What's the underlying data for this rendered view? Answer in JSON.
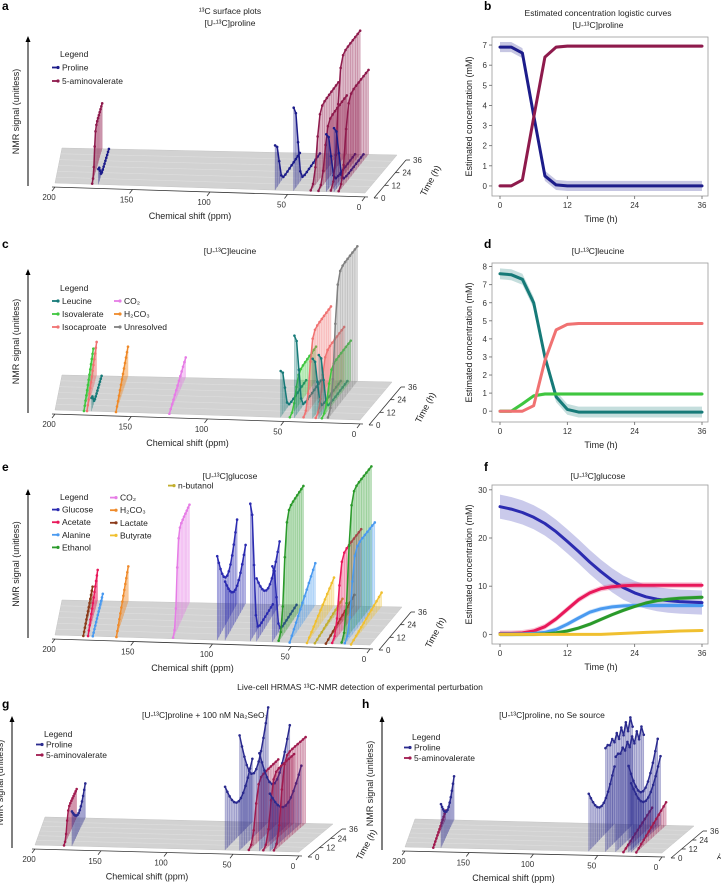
{
  "caption": "Live-cell HRMAS ¹³C-NMR detection of experimental perturbation",
  "chart_data": [
    {
      "panel": "a",
      "type": "surface3d",
      "title_lines": [
        "¹³C surface plots",
        "[U-¹³C]proline"
      ],
      "xlabel": "Chemical shift (ppm)",
      "tlabel": "Time (h)",
      "zlabel": "NMR signal (unitless)",
      "xticks": [
        200,
        150,
        100,
        50,
        0
      ],
      "tticks": [
        0,
        12,
        24,
        36
      ],
      "legend_title": "Legend",
      "series": [
        {
          "name": "Proline",
          "color": "#1c1c8a"
        },
        {
          "name": "5-aminovalerate",
          "color": "#8e1a4c"
        }
      ],
      "peaks": [
        {
          "series": 1,
          "ppm": 176,
          "trend": "increasing",
          "relative_height": 0.35
        },
        {
          "series": 0,
          "ppm": 172,
          "trend": "decreasing",
          "relative_height": 0.12
        },
        {
          "series": 0,
          "ppm": 58,
          "trend": "decreasing",
          "relative_height": 0.35
        },
        {
          "series": 0,
          "ppm": 46,
          "trend": "decreasing",
          "relative_height": 0.65
        },
        {
          "series": 1,
          "ppm": 35,
          "trend": "increasing",
          "relative_height": 0.55
        },
        {
          "series": 1,
          "ppm": 30,
          "trend": "increasing",
          "relative_height": 0.45
        },
        {
          "series": 0,
          "ppm": 25,
          "trend": "decreasing",
          "relative_height": 0.45
        },
        {
          "series": 1,
          "ppm": 22,
          "trend": "increasing",
          "relative_height": 0.95
        },
        {
          "series": 0,
          "ppm": 20,
          "trend": "decreasing",
          "relative_height": 0.5
        },
        {
          "series": 1,
          "ppm": 17,
          "trend": "increasing",
          "relative_height": 0.65
        }
      ]
    },
    {
      "panel": "b",
      "type": "line",
      "title_lines": [
        "Estimated concentration logistic curves",
        "[U-¹³C]proline"
      ],
      "xlabel": "Time (h)",
      "ylabel": "Estimated concentration (mM)",
      "xticks": [
        0,
        12,
        24,
        36
      ],
      "yticks": [
        0,
        1,
        2,
        3,
        4,
        5,
        6,
        7
      ],
      "xlim": [
        0,
        36
      ],
      "ylim": [
        -0.5,
        7.4
      ],
      "x": [
        0,
        2,
        4,
        6,
        8,
        10,
        12,
        14,
        16,
        18,
        20,
        22,
        24,
        26,
        28,
        30,
        32,
        34,
        36
      ],
      "series": [
        {
          "name": "Proline",
          "color": "#1c1c8a",
          "ci_halfwidth": 0.25,
          "values": [
            6.9,
            6.9,
            6.6,
            3.5,
            0.5,
            0.05,
            0,
            0,
            0,
            0,
            0,
            0,
            0,
            0,
            0,
            0,
            0,
            0,
            0
          ]
        },
        {
          "name": "5-aminovalerate",
          "color": "#8e1a4c",
          "ci_halfwidth": 0.08,
          "values": [
            0,
            0,
            0.3,
            3.4,
            6.4,
            6.9,
            6.95,
            6.95,
            6.95,
            6.95,
            6.95,
            6.95,
            6.95,
            6.95,
            6.95,
            6.95,
            6.95,
            6.95,
            6.95
          ]
        }
      ]
    },
    {
      "panel": "c",
      "type": "surface3d",
      "title_lines": [
        "[U-¹³C]leucine"
      ],
      "xlabel": "Chemical shift (ppm)",
      "tlabel": "Time (h)",
      "zlabel": "NMR signal (unitless)",
      "xticks": [
        200,
        150,
        100,
        50,
        0
      ],
      "tticks": [
        0,
        12,
        24,
        36
      ],
      "legend_title": "Legend",
      "series": [
        {
          "name": "Leucine",
          "color": "#167a78"
        },
        {
          "name": "Isovalerate",
          "color": "#3fc63f"
        },
        {
          "name": "Isocaproate",
          "color": "#f07272"
        },
        {
          "name": "CO₂",
          "color": "#e67de6"
        },
        {
          "name": "H₂CO₃",
          "color": "#ef8a2a"
        },
        {
          "name": "Unresolved",
          "color": "#808080"
        }
      ],
      "peaks": [
        {
          "series": 1,
          "ppm": 181,
          "trend": "gradual",
          "relative_height": 0.2
        },
        {
          "series": 2,
          "ppm": 179,
          "trend": "gradual",
          "relative_height": 0.25
        },
        {
          "series": 0,
          "ppm": 176,
          "trend": "decreasing",
          "relative_height": 0.1
        },
        {
          "series": 4,
          "ppm": 160,
          "trend": "gradual",
          "relative_height": 0.22
        },
        {
          "series": 3,
          "ppm": 125,
          "trend": "gradual",
          "relative_height": 0.15
        },
        {
          "series": 0,
          "ppm": 52,
          "trend": "decreasing",
          "relative_height": 0.35
        },
        {
          "series": 1,
          "ppm": 46,
          "trend": "increasing",
          "relative_height": 0.25
        },
        {
          "series": 0,
          "ppm": 43,
          "trend": "decreasing",
          "relative_height": 0.62
        },
        {
          "series": 2,
          "ppm": 37,
          "trend": "increasing",
          "relative_height": 0.55
        },
        {
          "series": 0,
          "ppm": 31,
          "trend": "decreasing",
          "relative_height": 0.45
        },
        {
          "series": 2,
          "ppm": 29,
          "trend": "increasing",
          "relative_height": 0.4
        },
        {
          "series": 0,
          "ppm": 27,
          "trend": "decreasing",
          "relative_height": 0.48
        },
        {
          "series": 1,
          "ppm": 25,
          "trend": "increasing",
          "relative_height": 0.3
        },
        {
          "series": 5,
          "ppm": 21,
          "trend": "increasing",
          "relative_height": 1.0
        }
      ]
    },
    {
      "panel": "d",
      "type": "line",
      "title_lines": [
        "[U-¹³C]leucine"
      ],
      "xlabel": "Time (h)",
      "ylabel": "Estimated concentration (mM)",
      "xticks": [
        0,
        12,
        24,
        36
      ],
      "yticks": [
        0,
        1,
        2,
        3,
        4,
        5,
        6,
        7,
        8
      ],
      "xlim": [
        0,
        36
      ],
      "ylim": [
        -0.6,
        8.2
      ],
      "x": [
        0,
        2,
        4,
        6,
        8,
        10,
        12,
        14,
        16,
        18,
        20,
        22,
        24,
        26,
        28,
        30,
        32,
        34,
        36
      ],
      "series": [
        {
          "name": "Leucine",
          "color": "#167a78",
          "ci_halfwidth": 0.3,
          "values": [
            7.6,
            7.55,
            7.3,
            6.0,
            3.0,
            0.8,
            0.1,
            -0.05,
            -0.05,
            -0.05,
            -0.05,
            -0.05,
            -0.05,
            -0.05,
            -0.05,
            -0.05,
            -0.05,
            -0.05,
            -0.05
          ]
        },
        {
          "name": "Isovalerate",
          "color": "#3fc63f",
          "ci_halfwidth": 0.1,
          "values": [
            0,
            0,
            0.4,
            0.85,
            0.95,
            0.95,
            0.95,
            0.95,
            0.95,
            0.95,
            0.95,
            0.95,
            0.95,
            0.95,
            0.95,
            0.95,
            0.95,
            0.95,
            0.95
          ]
        },
        {
          "name": "Isocaproate",
          "color": "#f07272",
          "ci_halfwidth": 0.08,
          "values": [
            0,
            0,
            0,
            0.3,
            2.8,
            4.5,
            4.8,
            4.85,
            4.85,
            4.85,
            4.85,
            4.85,
            4.85,
            4.85,
            4.85,
            4.85,
            4.85,
            4.85,
            4.85
          ]
        }
      ]
    },
    {
      "panel": "e",
      "type": "surface3d",
      "title_lines": [
        "[U-¹³C]glucose"
      ],
      "xlabel": "Chemical shift (ppm)",
      "tlabel": "Time (h)",
      "zlabel": "NMR signal (unitless)",
      "xticks": [
        200,
        150,
        100,
        50,
        0
      ],
      "tticks": [
        0,
        12,
        24,
        36
      ],
      "legend_title": "Legend",
      "series": [
        {
          "name": "Glucose",
          "color": "#2b2bb0"
        },
        {
          "name": "Acetate",
          "color": "#e8185a"
        },
        {
          "name": "Alanine",
          "color": "#4a9af0"
        },
        {
          "name": "Ethanol",
          "color": "#2a9a2a"
        },
        {
          "name": "CO₂",
          "color": "#e67de6"
        },
        {
          "name": "H₂CO₃",
          "color": "#ef8a2a"
        },
        {
          "name": "Lactate",
          "color": "#8b3a1a"
        },
        {
          "name": "Butyrate",
          "color": "#f0c030"
        },
        {
          "name": "n-butanol",
          "color": "#c2ae2e"
        }
      ],
      "peaks": [
        {
          "series": 6,
          "ppm": 182,
          "trend": "gradual",
          "relative_height": 0.1
        },
        {
          "series": 1,
          "ppm": 179,
          "trend": "gradual",
          "relative_height": 0.22
        },
        {
          "series": 2,
          "ppm": 176,
          "trend": "gradual",
          "relative_height": 0.05
        },
        {
          "series": 5,
          "ppm": 161,
          "trend": "gradual",
          "relative_height": 0.25
        },
        {
          "series": 4,
          "ppm": 125,
          "trend": "increasing",
          "relative_height": 0.7
        },
        {
          "series": 0,
          "ppm": 97,
          "trend": "dip",
          "relative_height": 0.6
        },
        {
          "series": 0,
          "ppm": 92,
          "trend": "dip",
          "relative_height": 0.42
        },
        {
          "series": 0,
          "ppm": 76,
          "trend": "decreasing",
          "relative_height": 1.0
        },
        {
          "series": 0,
          "ppm": 72,
          "trend": "dip",
          "relative_height": 0.45
        },
        {
          "series": 0,
          "ppm": 62,
          "trend": "decreasing",
          "relative_height": 0.55
        },
        {
          "series": 3,
          "ppm": 58,
          "trend": "increasing",
          "relative_height": 0.85
        },
        {
          "series": 2,
          "ppm": 51,
          "trend": "gradual",
          "relative_height": 0.3
        },
        {
          "series": 7,
          "ppm": 40,
          "trend": "gradual",
          "relative_height": 0.2
        },
        {
          "series": 8,
          "ppm": 35,
          "trend": "gradual",
          "relative_height": 0.05
        },
        {
          "series": 6,
          "ppm": 28,
          "trend": "gradual",
          "relative_height": 0.08
        },
        {
          "series": 1,
          "ppm": 24,
          "trend": "increasing",
          "relative_height": 0.55
        },
        {
          "series": 3,
          "ppm": 18,
          "trend": "increasing",
          "relative_height": 1.0
        },
        {
          "series": 2,
          "ppm": 16,
          "trend": "increasing",
          "relative_height": 0.6
        },
        {
          "series": 7,
          "ppm": 12,
          "trend": "gradual",
          "relative_height": 0.1
        }
      ]
    },
    {
      "panel": "f",
      "type": "line",
      "title_lines": [
        "[U-¹³C]glucose"
      ],
      "xlabel": "Time (h)",
      "ylabel": "Estimated concentration (mM)",
      "xticks": [
        0,
        12,
        24,
        36
      ],
      "yticks": [
        0,
        10,
        20,
        30
      ],
      "xlim": [
        0,
        36
      ],
      "ylim": [
        -2,
        31
      ],
      "x": [
        0,
        2,
        4,
        6,
        8,
        10,
        12,
        14,
        16,
        18,
        20,
        22,
        24,
        26,
        28,
        30,
        32,
        34,
        36
      ],
      "series": [
        {
          "name": "Glucose",
          "color": "#2b2bb0",
          "ci_halfwidth": 2.5,
          "values": [
            26.5,
            26,
            25.3,
            24.3,
            23,
            21.3,
            19.3,
            17.2,
            15,
            13,
            11.2,
            9.7,
            8.6,
            7.8,
            7.3,
            7,
            6.8,
            6.7,
            6.6
          ]
        },
        {
          "name": "Acetate",
          "color": "#e8185a",
          "ci_halfwidth": 0.6,
          "values": [
            0.2,
            0.2,
            0.3,
            0.7,
            1.6,
            3.2,
            5.2,
            7.2,
            8.6,
            9.5,
            9.9,
            10.1,
            10.2,
            10.2,
            10.2,
            10.2,
            10.2,
            10.2,
            10.2
          ]
        },
        {
          "name": "Alanine",
          "color": "#4a9af0",
          "ci_halfwidth": 0.5,
          "values": [
            0.1,
            0.1,
            0.1,
            0.2,
            0.4,
            1,
            2.1,
            3.4,
            4.6,
            5.3,
            5.7,
            5.9,
            6,
            6,
            6,
            6,
            6,
            6,
            6
          ]
        },
        {
          "name": "Ethanol",
          "color": "#2a9a2a",
          "ci_halfwidth": 0.4,
          "values": [
            0,
            0,
            0,
            0,
            0.1,
            0.3,
            0.7,
            1.3,
            2.1,
            3.1,
            4.1,
            5,
            5.8,
            6.5,
            7,
            7.3,
            7.5,
            7.6,
            7.7
          ]
        },
        {
          "name": "Butyrate",
          "color": "#f0c030",
          "ci_halfwidth": 0.15,
          "values": [
            0,
            0,
            0,
            0,
            0,
            0,
            0,
            0,
            0,
            0,
            0.1,
            0.2,
            0.3,
            0.4,
            0.5,
            0.6,
            0.7,
            0.75,
            0.8
          ]
        }
      ]
    },
    {
      "panel": "g",
      "type": "surface3d",
      "title_lines": [
        "[U-¹³C]proline + 100 nM Na₂SeO₃"
      ],
      "xlabel": "Chemical shift (ppm)",
      "tlabel": "Time (h)",
      "zlabel": "NMR signal (unitless)",
      "xticks": [
        200,
        150,
        100,
        50,
        0
      ],
      "tticks": [
        0,
        12,
        24,
        36
      ],
      "legend_title": "Legend",
      "series": [
        {
          "name": "Proline",
          "color": "#2a2a8e"
        },
        {
          "name": "5-aminovalerate",
          "color": "#a01a4e"
        }
      ],
      "peaks": [
        {
          "series": 1,
          "ppm": 178,
          "trend": "increasing",
          "relative_height": 0.25
        },
        {
          "series": 0,
          "ppm": 172,
          "trend": "dip",
          "relative_height": 0.3
        },
        {
          "series": 0,
          "ppm": 56,
          "trend": "dip",
          "relative_height": 0.55
        },
        {
          "series": 0,
          "ppm": 45,
          "trend": "dip",
          "relative_height": 1.0
        },
        {
          "series": 1,
          "ppm": 38,
          "trend": "increasing",
          "relative_height": 0.55
        },
        {
          "series": 0,
          "ppm": 30,
          "trend": "dip",
          "relative_height": 0.85
        },
        {
          "series": 1,
          "ppm": 27,
          "trend": "increasing",
          "relative_height": 0.6
        },
        {
          "series": 0,
          "ppm": 22,
          "trend": "dip",
          "relative_height": 0.5
        },
        {
          "series": 1,
          "ppm": 19,
          "trend": "increasing",
          "relative_height": 0.75
        }
      ]
    },
    {
      "panel": "h",
      "type": "surface3d",
      "title_lines": [
        "[U-¹³C]proline, no Se source"
      ],
      "xlabel": "Chemical shift (ppm)",
      "tlabel": "Time (h)",
      "zlabel": "NMR signal (unitless)",
      "xticks": [
        200,
        150,
        100,
        50,
        0
      ],
      "tticks": [
        0,
        12,
        24,
        36
      ],
      "legend_title": "Legend",
      "series": [
        {
          "name": "Proline",
          "color": "#2a2a8e"
        },
        {
          "name": "5-aminovalerate",
          "color": "#a01a4e"
        }
      ],
      "peaks": [
        {
          "series": 1,
          "ppm": 178,
          "trend": "gradual",
          "relative_height": 0.08
        },
        {
          "series": 0,
          "ppm": 172,
          "trend": "dip",
          "relative_height": 0.38
        },
        {
          "series": 0,
          "ppm": 57,
          "trend": "dip",
          "relative_height": 0.5
        },
        {
          "series": 0,
          "ppm": 44,
          "trend": "flat",
          "relative_height": 1.0
        },
        {
          "series": 0,
          "ppm": 36,
          "trend": "flat",
          "relative_height": 0.92
        },
        {
          "series": 1,
          "ppm": 30,
          "trend": "gradual",
          "relative_height": 0.15
        },
        {
          "series": 0,
          "ppm": 26,
          "trend": "dip",
          "relative_height": 0.75
        },
        {
          "series": 0,
          "ppm": 24,
          "trend": "dip",
          "relative_height": 0.6
        },
        {
          "series": 1,
          "ppm": 20,
          "trend": "gradual",
          "relative_height": 0.2
        }
      ]
    }
  ]
}
